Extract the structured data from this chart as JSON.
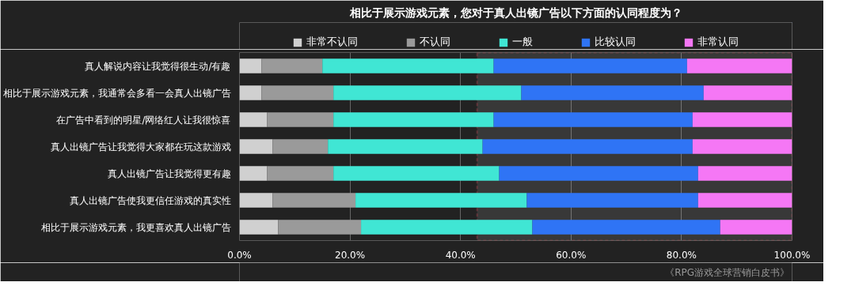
{
  "chart_data": {
    "type": "bar",
    "orientation": "horizontal",
    "stacked": true,
    "title": "相比于展示游戏元素，您对于真人出镜广告以下方面的认同程度为？",
    "categories": [
      "真人解说内容让我觉得很生动/有趣",
      "相比于展示游戏元素，我通常会多看一会真人出镜广告",
      "在广告中看到的明星/网络红人让我很惊喜",
      "真人出镜广告让我觉得大家都在玩这款游戏",
      "真人出镜广告让我觉得更有趣",
      "真人出镜广告使我更信任游戏的真实性",
      "相比于展示游戏元素，我更喜欢真人出镜广告"
    ],
    "series": [
      {
        "name": "非常不认同",
        "color": "#d0d0d0",
        "values": [
          4,
          4,
          5,
          6,
          5,
          6,
          7
        ]
      },
      {
        "name": "不认同",
        "color": "#9a9a9a",
        "values": [
          11,
          13,
          12,
          10,
          12,
          15,
          15
        ]
      },
      {
        "name": "一般",
        "color": "#40e6d4",
        "values": [
          31,
          34,
          29,
          28,
          30,
          31,
          31
        ]
      },
      {
        "name": "比较认同",
        "color": "#2f74f5",
        "values": [
          35,
          33,
          36,
          38,
          36,
          31,
          34
        ]
      },
      {
        "name": "非常认同",
        "color": "#f577f5",
        "values": [
          19,
          16,
          18,
          18,
          17,
          17,
          13
        ]
      }
    ],
    "xlim": [
      0,
      100
    ],
    "xticks": [
      {
        "value": 0,
        "label": "0.0%"
      },
      {
        "value": 20,
        "label": "20.0%"
      },
      {
        "value": 40,
        "label": "40.0%"
      },
      {
        "value": 60,
        "label": "60.0%"
      },
      {
        "value": 80,
        "label": "80.0%"
      },
      {
        "value": 100,
        "label": "100.0%"
      }
    ],
    "grid": "x",
    "legend": "top",
    "bands": [
      {
        "axis": "x",
        "from": 43,
        "to": 100,
        "color": "#d9485a"
      }
    ],
    "annotations": [
      "《RPG游戏全球营销白皮书》"
    ]
  }
}
